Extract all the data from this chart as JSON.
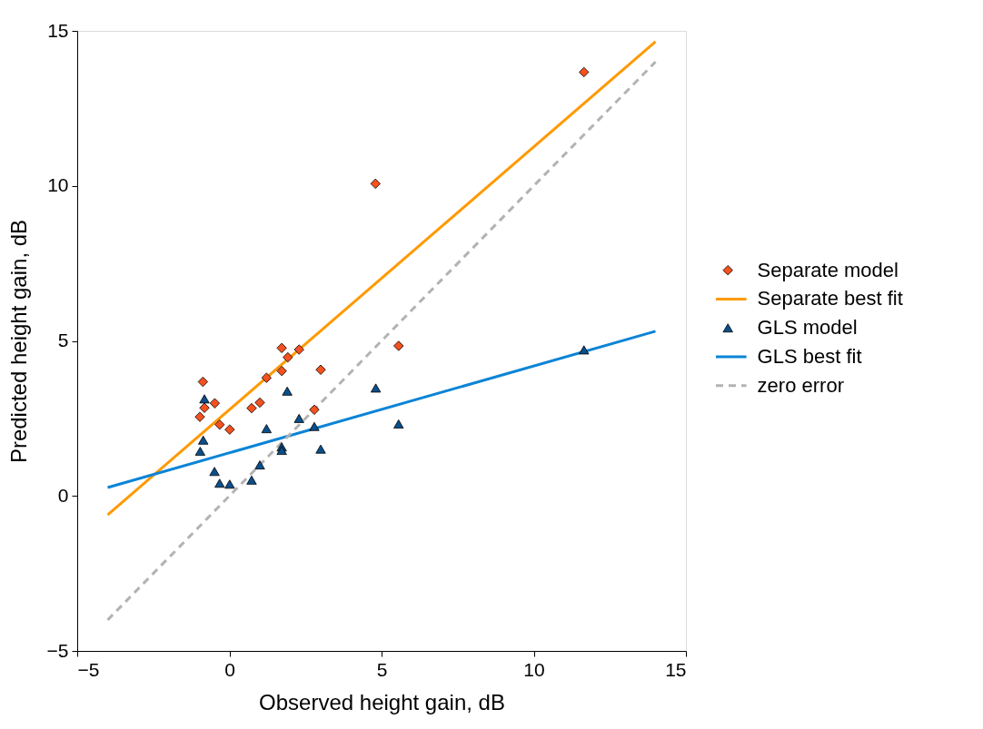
{
  "chart_data": {
    "type": "scatter",
    "xlabel": "Observed height gain, dB",
    "ylabel": "Predicted height gain, dB",
    "xlim": [
      -5,
      15
    ],
    "ylim": [
      -5,
      15
    ],
    "xticks": [
      -5,
      0,
      5,
      10,
      15
    ],
    "yticks": [
      -5,
      0,
      5,
      10,
      15
    ],
    "grid": false,
    "legend": "right",
    "series": [
      {
        "name": "Separate model",
        "marker": "diamond",
        "color": "#f4511e",
        "x": [
          -0.87,
          -0.48,
          -0.82,
          -0.97,
          -0.32,
          0.01,
          0.73,
          1.0,
          1.22,
          1.72,
          2.29,
          1.92,
          1.72,
          3.0,
          2.79,
          5.56,
          4.8,
          11.65
        ],
        "values": [
          3.68,
          2.99,
          2.84,
          2.55,
          2.3,
          2.14,
          2.83,
          3.01,
          3.81,
          4.77,
          4.72,
          4.47,
          4.03,
          4.07,
          2.78,
          4.84,
          10.07,
          13.67
        ]
      },
      {
        "name": "Separate best fit",
        "type": "line",
        "marker": "none",
        "line_style": "solid",
        "color": "#ff9900",
        "x": [
          -4,
          14
        ],
        "values": [
          -0.61,
          14.65
        ]
      },
      {
        "name": "GLS model",
        "marker": "triangle",
        "color": "#0b4f8a",
        "x": [
          -0.82,
          -0.86,
          -0.96,
          -0.49,
          -0.32,
          0.01,
          0.73,
          1.0,
          1.22,
          1.72,
          1.72,
          1.9,
          2.29,
          2.79,
          3.0,
          4.81,
          5.56,
          11.65
        ],
        "values": [
          3.13,
          1.8,
          1.44,
          0.79,
          0.41,
          0.38,
          0.51,
          1.0,
          2.17,
          1.58,
          1.47,
          3.38,
          2.5,
          2.24,
          1.51,
          3.48,
          2.32,
          4.71
        ]
      },
      {
        "name": "GLS best fit",
        "type": "line",
        "marker": "none",
        "line_style": "solid",
        "color": "#0a84d6",
        "x": [
          -4,
          14
        ],
        "values": [
          0.27,
          5.31
        ]
      },
      {
        "name": "zero error",
        "type": "line",
        "marker": "none",
        "line_style": "dashed",
        "color": "#b3b3b3",
        "x": [
          -4,
          14
        ],
        "values": [
          -4,
          14
        ]
      }
    ]
  }
}
